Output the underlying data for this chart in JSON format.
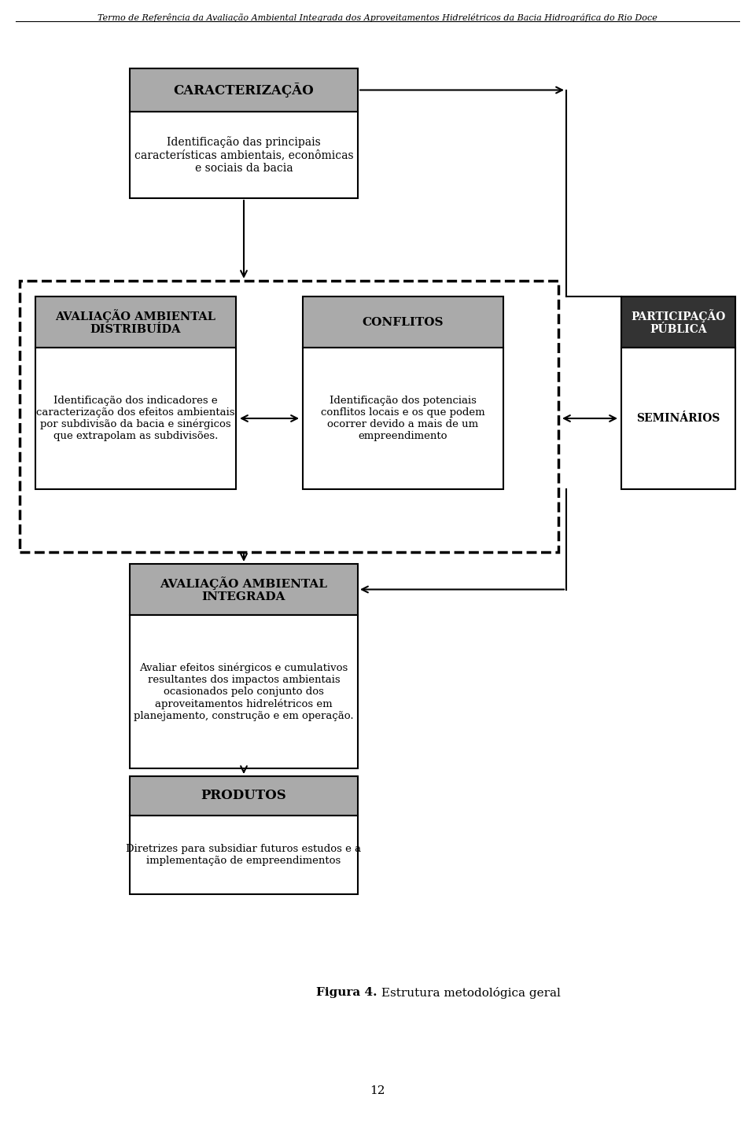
{
  "title_text": "Termo de Referência da Avaliação Ambiental Integrada dos Aproveitamentos Hidrelétricos da Bacia Hidrográfica do Rio Doce",
  "header_text": "CARACTERIZAÇÃO",
  "header_subtext": "Identificação das principais\ncaracterísticas ambientais, econômicas\ne sociais da bacia",
  "box1_header": "AVALIAÇÃO AMBIENTAL\nDISTRIBUÍDA",
  "box1_body": "Identificação dos indicadores e\ncaracterização dos efeitos ambientais\npor subdivisão da bacia e sinérgicos\nque extrapolam as subdivisões.",
  "box2_header": "CONFLITOS",
  "box2_body": "Identificação dos potenciais\nconflitos locais e os que podem\nocorrer devido a mais de um\nempreendimento",
  "box3_header": "PARTICIPAÇÃO\nPÚBLICA",
  "box3_body": "SEMINÁRIOS",
  "box4_header": "AVALIAÇÃO AMBIENTAL\nINTEGRADA",
  "box4_body": "Avaliar efeitos sinérgicos e cumulativos\nresultantes dos impactos ambientais\nocasionados pelo conjunto dos\naproveitamentos hidrelétricos em\nplanejamento, construção e em operação.",
  "box5_header": "PRODUTOS",
  "box5_body": "Diretrizes para subsidiar futuros estudos e a\nimplementação de empreendimentos",
  "figure_caption_bold": "Figura 4.",
  "figure_caption_normal": " Estrutura metodológica geral",
  "page_number": "12",
  "gray_header_color": "#aaaaaa",
  "dark_header_color": "#333333",
  "white_body_color": "#ffffff",
  "bg_color": "#ffffff"
}
